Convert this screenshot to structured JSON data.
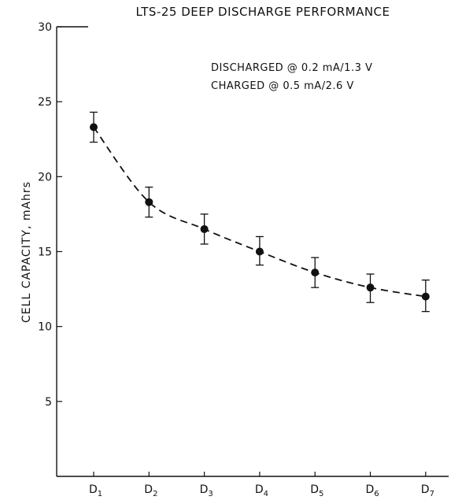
{
  "chart_data": {
    "type": "scatter",
    "title": "LTS-25 DEEP DISCHARGE PERFORMANCE",
    "annotations": [
      "DISCHARGED @ 0.2 mA/1.3 V",
      "CHARGED @ 0.5 mA/2.6 V"
    ],
    "xlabel": "",
    "ylabel": "CELL CAPACITY, mAhrs",
    "ylim": [
      0,
      30
    ],
    "yticks": [
      5,
      10,
      15,
      20,
      25,
      30
    ],
    "categories": [
      {
        "main": "D",
        "sub": "1"
      },
      {
        "main": "D",
        "sub": "2"
      },
      {
        "main": "D",
        "sub": "3"
      },
      {
        "main": "D",
        "sub": "4"
      },
      {
        "main": "D",
        "sub": "5"
      },
      {
        "main": "D",
        "sub": "6"
      },
      {
        "main": "D",
        "sub": "7"
      }
    ],
    "values": [
      23.3,
      18.3,
      16.5,
      15.0,
      13.6,
      12.6,
      12.0
    ],
    "error_low": [
      22.3,
      17.3,
      15.5,
      14.1,
      12.6,
      11.6,
      11.0
    ],
    "error_high": [
      24.3,
      19.3,
      17.5,
      16.0,
      14.6,
      13.5,
      13.1
    ],
    "fit_line": "dashed curve",
    "grid": false,
    "legend": "none"
  }
}
